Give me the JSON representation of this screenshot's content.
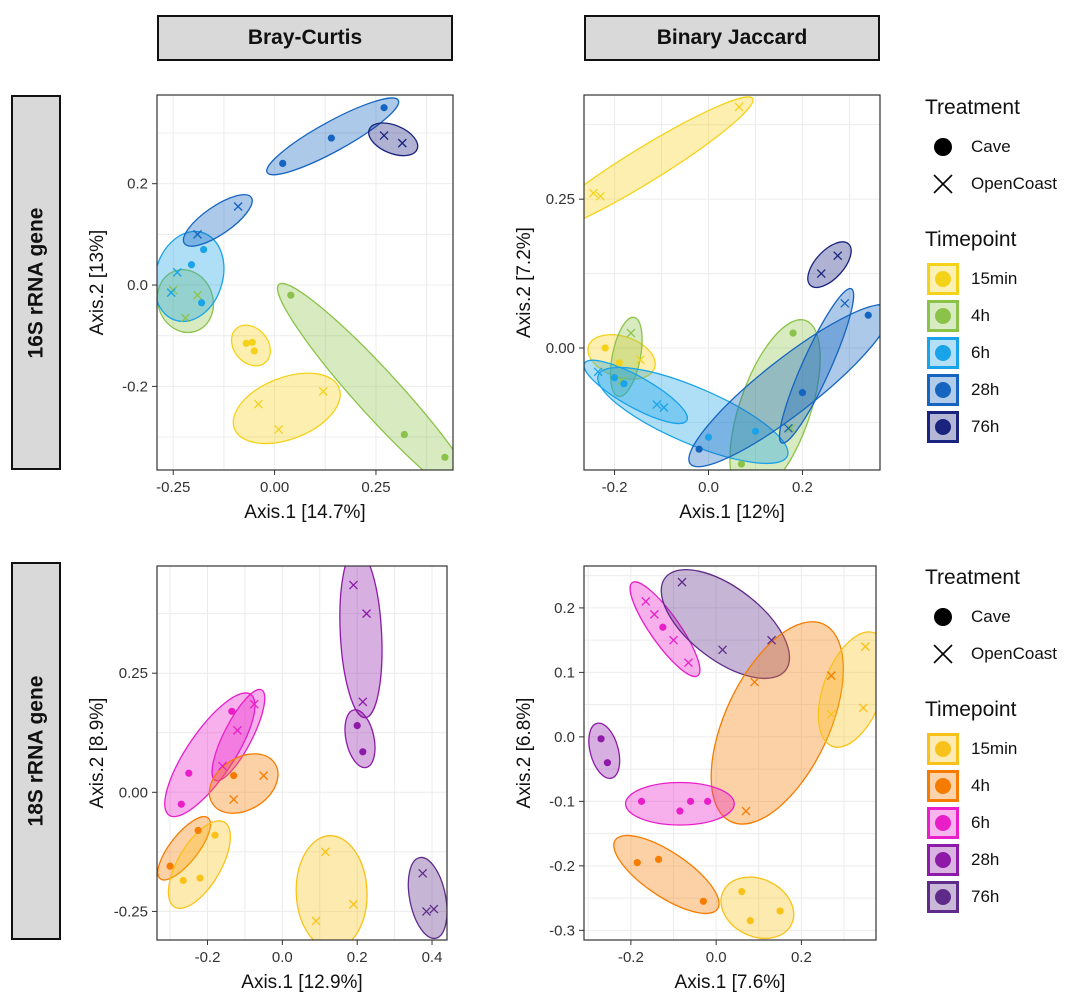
{
  "facets": {
    "columns": [
      "Bray-Curtis",
      "Binary Jaccard"
    ],
    "rows": [
      "16S rRNA gene",
      "18S rRNA gene"
    ]
  },
  "legends": [
    {
      "treatment_title": "Treatment",
      "treatments": [
        {
          "label": "Cave",
          "shape": "circle"
        },
        {
          "label": "OpenCoast",
          "shape": "cross"
        }
      ],
      "timepoint_title": "Timepoint",
      "timepoints": [
        {
          "label": "15min",
          "color": "#f5d21a"
        },
        {
          "label": "4h",
          "color": "#8bc34a"
        },
        {
          "label": "6h",
          "color": "#1aa3e8"
        },
        {
          "label": "28h",
          "color": "#1565c0"
        },
        {
          "label": "76h",
          "color": "#1a237e"
        }
      ]
    },
    {
      "treatment_title": "Treatment",
      "treatments": [
        {
          "label": "Cave",
          "shape": "circle"
        },
        {
          "label": "OpenCoast",
          "shape": "cross"
        }
      ],
      "timepoint_title": "Timepoint",
      "timepoints": [
        {
          "label": "15min",
          "color": "#f9c21a"
        },
        {
          "label": "4h",
          "color": "#f57c00"
        },
        {
          "label": "6h",
          "color": "#e91ec8"
        },
        {
          "label": "28h",
          "color": "#8e1aa8"
        },
        {
          "label": "76h",
          "color": "#5e2b8a"
        }
      ]
    }
  ],
  "chart_data": [
    {
      "type": "scatter",
      "facet": "16S rRNA gene / Bray-Curtis",
      "xlabel": "Axis.1 [14.7%]",
      "ylabel": "Axis.2 [13%]",
      "xlim": [
        -0.29,
        0.44
      ],
      "ylim": [
        -0.365,
        0.375
      ],
      "xticks": [
        -0.25,
        0.0,
        0.25
      ],
      "xtick_labels": [
        "-0.25",
        "0.00",
        "0.25"
      ],
      "yticks": [
        -0.2,
        0.0,
        0.2
      ],
      "ytick_labels": [
        "-0.2",
        "0.0",
        "0.2"
      ],
      "groups": [
        {
          "timepoint": "15min",
          "points": [
            [
              -0.07,
              -0.115,
              "c"
            ],
            [
              -0.055,
              -0.113,
              "c"
            ],
            [
              -0.05,
              -0.13,
              "c"
            ]
          ]
        },
        {
          "timepoint": "15min",
          "points": [
            [
              -0.04,
              -0.235,
              "x"
            ],
            [
              0.01,
              -0.285,
              "x"
            ],
            [
              0.12,
              -0.21,
              "x"
            ]
          ]
        },
        {
          "timepoint": "4h",
          "points": [
            [
              0.04,
              -0.02,
              "c"
            ],
            [
              0.32,
              -0.295,
              "c"
            ],
            [
              0.42,
              -0.34,
              "c"
            ]
          ]
        },
        {
          "timepoint": "4h",
          "points": [
            [
              -0.25,
              -0.01,
              "x"
            ],
            [
              -0.22,
              -0.065,
              "x"
            ],
            [
              -0.19,
              -0.02,
              "x"
            ]
          ]
        },
        {
          "timepoint": "6h",
          "points": [
            [
              -0.24,
              0.025,
              "x"
            ],
            [
              -0.205,
              0.04,
              "c"
            ],
            [
              -0.175,
              0.07,
              "c"
            ],
            [
              -0.18,
              -0.035,
              "c"
            ],
            [
              -0.255,
              -0.015,
              "x"
            ]
          ]
        },
        {
          "timepoint": "28h",
          "points": [
            [
              0.02,
              0.24,
              "c"
            ],
            [
              0.14,
              0.29,
              "c"
            ],
            [
              0.27,
              0.35,
              "c"
            ]
          ]
        },
        {
          "timepoint": "28h",
          "points": [
            [
              -0.19,
              0.1,
              "x"
            ],
            [
              -0.09,
              0.155,
              "x"
            ]
          ]
        },
        {
          "timepoint": "76h",
          "points": [
            [
              0.27,
              0.295,
              "x"
            ],
            [
              0.315,
              0.28,
              "x"
            ]
          ]
        }
      ]
    },
    {
      "type": "scatter",
      "facet": "16S rRNA gene / Binary Jaccard",
      "xlabel": "Axis.1 [12%]",
      "ylabel": "Axis.2 [7.2%]",
      "xlim": [
        -0.265,
        0.365
      ],
      "ylim": [
        -0.205,
        0.425
      ],
      "xticks": [
        -0.2,
        0.0,
        0.2
      ],
      "xtick_labels": [
        "-0.2",
        "0.0",
        "0.2"
      ],
      "yticks": [
        0.0,
        0.25
      ],
      "ytick_labels": [
        "0.00",
        "0.25"
      ],
      "groups": [
        {
          "timepoint": "15min",
          "points": [
            [
              -0.245,
              0.26,
              "x"
            ],
            [
              -0.23,
              0.255,
              "x"
            ],
            [
              0.065,
              0.405,
              "x"
            ]
          ]
        },
        {
          "timepoint": "15min",
          "points": [
            [
              -0.22,
              0.0,
              "c"
            ],
            [
              -0.19,
              -0.025,
              "c"
            ],
            [
              -0.145,
              -0.02,
              "x"
            ]
          ]
        },
        {
          "timepoint": "4h",
          "points": [
            [
              -0.165,
              0.025,
              "x"
            ],
            [
              -0.185,
              -0.055,
              "x"
            ]
          ]
        },
        {
          "timepoint": "4h",
          "points": [
            [
              0.07,
              -0.195,
              "c"
            ],
            [
              0.18,
              0.025,
              "c"
            ],
            [
              0.175,
              -0.135,
              "x"
            ]
          ]
        },
        {
          "timepoint": "6h",
          "points": [
            [
              -0.235,
              -0.04,
              "x"
            ],
            [
              -0.18,
              -0.06,
              "c"
            ],
            [
              -0.11,
              -0.095,
              "x"
            ],
            [
              -0.095,
              -0.1,
              "x"
            ]
          ]
        },
        {
          "timepoint": "6h",
          "points": [
            [
              -0.2,
              -0.05,
              "c"
            ],
            [
              0.0,
              -0.15,
              "c"
            ],
            [
              0.1,
              -0.14,
              "c"
            ]
          ]
        },
        {
          "timepoint": "28h",
          "points": [
            [
              -0.02,
              -0.17,
              "c"
            ],
            [
              0.2,
              -0.075,
              "c"
            ],
            [
              0.34,
              0.055,
              "c"
            ]
          ]
        },
        {
          "timepoint": "28h",
          "points": [
            [
              0.17,
              -0.135,
              "x"
            ],
            [
              0.29,
              0.075,
              "x"
            ]
          ]
        },
        {
          "timepoint": "76h",
          "points": [
            [
              0.24,
              0.125,
              "x"
            ],
            [
              0.275,
              0.155,
              "x"
            ]
          ]
        }
      ]
    },
    {
      "type": "scatter",
      "facet": "18S rRNA gene / Bray-Curtis",
      "xlabel": "Axis.1 [12.9%]",
      "ylabel": "Axis.2 [8.9%]",
      "xlim": [
        -0.335,
        0.44
      ],
      "ylim": [
        -0.31,
        0.475
      ],
      "xticks": [
        -0.2,
        0.0,
        0.2,
        0.4
      ],
      "xtick_labels": [
        "-0.2",
        "0.0",
        "0.2",
        "0.4"
      ],
      "yticks": [
        -0.25,
        0.0,
        0.25
      ],
      "ytick_labels": [
        "-0.25",
        "0.00",
        "0.25"
      ],
      "groups": [
        {
          "timepoint": "6h",
          "points": [
            [
              -0.27,
              -0.025,
              "c"
            ],
            [
              -0.25,
              0.04,
              "c"
            ],
            [
              -0.135,
              0.17,
              "c"
            ],
            [
              -0.12,
              0.13,
              "x"
            ]
          ]
        },
        {
          "timepoint": "6h",
          "points": [
            [
              -0.16,
              0.055,
              "x"
            ],
            [
              -0.075,
              0.185,
              "x"
            ]
          ]
        },
        {
          "timepoint": "4h",
          "points": [
            [
              -0.13,
              0.035,
              "c"
            ],
            [
              -0.05,
              0.035,
              "x"
            ],
            [
              -0.13,
              -0.015,
              "x"
            ]
          ]
        },
        {
          "timepoint": "4h",
          "points": [
            [
              -0.3,
              -0.155,
              "c"
            ],
            [
              -0.225,
              -0.08,
              "c"
            ]
          ]
        },
        {
          "timepoint": "15min",
          "points": [
            [
              -0.265,
              -0.185,
              "c"
            ],
            [
              -0.22,
              -0.18,
              "c"
            ],
            [
              -0.18,
              -0.09,
              "c"
            ]
          ]
        },
        {
          "timepoint": "15min",
          "points": [
            [
              0.09,
              -0.27,
              "x"
            ],
            [
              0.115,
              -0.125,
              "x"
            ],
            [
              0.19,
              -0.235,
              "x"
            ]
          ]
        },
        {
          "timepoint": "28h",
          "points": [
            [
              0.19,
              0.435,
              "x"
            ],
            [
              0.225,
              0.375,
              "x"
            ],
            [
              0.215,
              0.19,
              "x"
            ]
          ]
        },
        {
          "timepoint": "28h",
          "points": [
            [
              0.2,
              0.14,
              "c"
            ],
            [
              0.215,
              0.085,
              "c"
            ]
          ]
        },
        {
          "timepoint": "76h",
          "points": [
            [
              0.375,
              -0.17,
              "x"
            ],
            [
              0.385,
              -0.25,
              "x"
            ],
            [
              0.405,
              -0.245,
              "x"
            ]
          ]
        }
      ]
    },
    {
      "type": "scatter",
      "facet": "18S rRNA gene / Binary Jaccard",
      "xlabel": "Axis.1 [7.6%]",
      "ylabel": "Axis.2 [6.8%]",
      "xlim": [
        -0.31,
        0.375
      ],
      "ylim": [
        -0.315,
        0.265
      ],
      "xticks": [
        -0.2,
        0.0,
        0.2
      ],
      "xtick_labels": [
        "-0.2",
        "0.0",
        "0.2"
      ],
      "yticks": [
        -0.3,
        -0.2,
        -0.1,
        0.0,
        0.1,
        0.2
      ],
      "ytick_labels": [
        "-0.3",
        "-0.2",
        "-0.1",
        "0.0",
        "0.1",
        "0.2"
      ],
      "groups": [
        {
          "timepoint": "6h",
          "points": [
            [
              -0.165,
              0.21,
              "x"
            ],
            [
              -0.145,
              0.19,
              "x"
            ],
            [
              -0.125,
              0.17,
              "c"
            ],
            [
              -0.1,
              0.15,
              "x"
            ],
            [
              -0.065,
              0.115,
              "x"
            ]
          ]
        },
        {
          "timepoint": "76h",
          "points": [
            [
              -0.08,
              0.24,
              "x"
            ],
            [
              0.015,
              0.135,
              "x"
            ],
            [
              0.13,
              0.15,
              "x"
            ]
          ]
        },
        {
          "timepoint": "4h",
          "points": [
            [
              0.09,
              0.085,
              "x"
            ],
            [
              0.27,
              0.095,
              "x"
            ],
            [
              0.07,
              -0.115,
              "x"
            ]
          ]
        },
        {
          "timepoint": "15min",
          "points": [
            [
              0.27,
              0.035,
              "x"
            ],
            [
              0.35,
              0.14,
              "x"
            ],
            [
              0.345,
              0.045,
              "x"
            ]
          ]
        },
        {
          "timepoint": "28h",
          "points": [
            [
              -0.27,
              -0.003,
              "c"
            ],
            [
              -0.255,
              -0.04,
              "c"
            ]
          ]
        },
        {
          "timepoint": "6h",
          "points": [
            [
              -0.175,
              -0.1,
              "c"
            ],
            [
              -0.085,
              -0.115,
              "c"
            ],
            [
              -0.06,
              -0.1,
              "c"
            ],
            [
              -0.02,
              -0.1,
              "c"
            ]
          ]
        },
        {
          "timepoint": "4h",
          "points": [
            [
              -0.185,
              -0.195,
              "c"
            ],
            [
              -0.135,
              -0.19,
              "c"
            ],
            [
              -0.03,
              -0.255,
              "c"
            ]
          ]
        },
        {
          "timepoint": "15min",
          "points": [
            [
              0.06,
              -0.24,
              "c"
            ],
            [
              0.08,
              -0.285,
              "c"
            ],
            [
              0.15,
              -0.27,
              "c"
            ]
          ]
        }
      ]
    }
  ]
}
